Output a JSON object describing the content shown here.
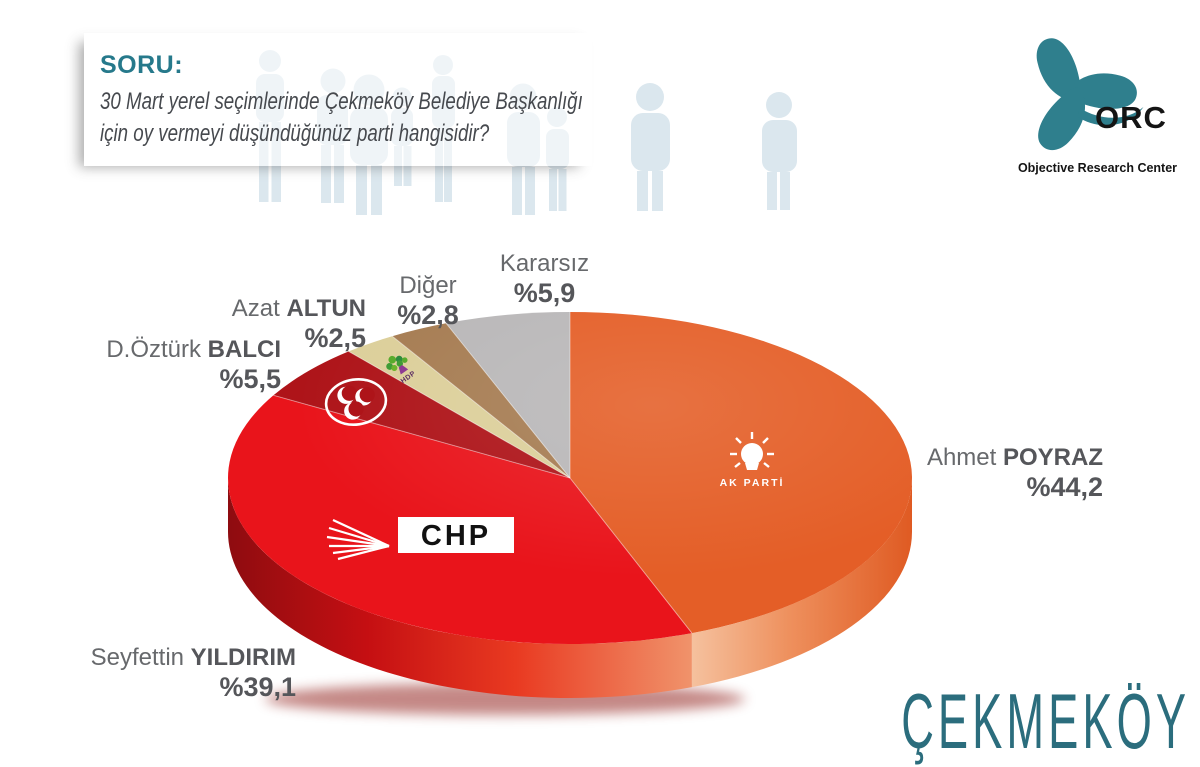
{
  "question": {
    "heading": "SORU:",
    "line1": "30 Mart yerel seçimlerinde Çekmeköy Belediye Başkanlığı",
    "line2": "için oy vermeyi düşündüğünüz parti hangisidir?"
  },
  "brand": {
    "name": "ORC",
    "subtitle": "Objective Research Center"
  },
  "footer": {
    "city": "ÇEKMEKÖY"
  },
  "chart_data": {
    "type": "pie",
    "title": "30 Mart yerel seçimlerinde Çekmeköy Belediye Başkanlığı için oy vermeyi düşündüğünüz parti hangisidir?",
    "unit": "percent",
    "start_angle_deg": 90,
    "direction": "clockwise",
    "slices": [
      {
        "first": "Ahmet",
        "last": "POYRAZ",
        "party": "AK PARTİ",
        "value": 44.2,
        "display": "%44,2",
        "color": "#e45e27"
      },
      {
        "first": "Seyfettin",
        "last": "YILDIRIM",
        "party": "CHP",
        "value": 39.1,
        "display": "%39,1",
        "color": "#e9141b"
      },
      {
        "first": "D.Öztürk",
        "last": "BALCI",
        "party": "MHP",
        "value": 5.5,
        "display": "%5,5",
        "color": "#ae1419"
      },
      {
        "first": "Azat",
        "last": "ALTUN",
        "party": "HDP",
        "value": 2.5,
        "display": "%2,5",
        "color": "#dccf9a"
      },
      {
        "first": "Diğer",
        "last": "",
        "party": "",
        "value": 2.8,
        "display": "%2,8",
        "color": "#a67c52"
      },
      {
        "first": "Kararsız",
        "last": "",
        "party": "",
        "value": 5.9,
        "display": "%5,9",
        "color": "#b9b7b8"
      }
    ],
    "legend_position": "around-slices",
    "grid": false
  },
  "colors": {
    "heading_teal": "#26798b",
    "wordmark_teal": "#2b6d7d",
    "label_gray": "#55565a",
    "silhouette_blue": "#dbe7ee"
  }
}
